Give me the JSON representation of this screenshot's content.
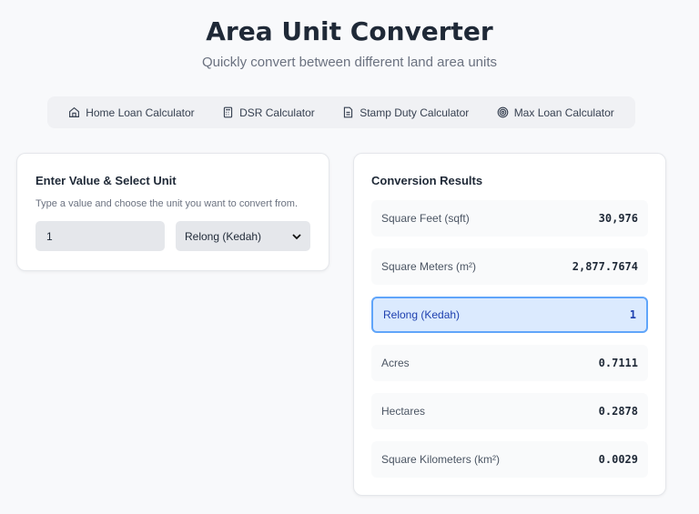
{
  "header": {
    "title": "Area Unit Converter",
    "subtitle": "Quickly convert between different land area units"
  },
  "nav": [
    {
      "label": "Home Loan Calculator",
      "icon": "home-icon"
    },
    {
      "label": "DSR Calculator",
      "icon": "calculator-icon"
    },
    {
      "label": "Stamp Duty Calculator",
      "icon": "document-icon"
    },
    {
      "label": "Max Loan Calculator",
      "icon": "target-icon"
    }
  ],
  "input": {
    "title": "Enter Value & Select Unit",
    "description": "Type a value and choose the unit you want to convert from.",
    "value": "1",
    "unit": "Relong (Kedah)"
  },
  "results": {
    "title": "Conversion Results",
    "items": [
      {
        "label": "Square Feet (sqft)",
        "value": "30,976"
      },
      {
        "label": "Square Meters (m²)",
        "value": "2,877.7674"
      },
      {
        "label": "Relong (Kedah)",
        "value": "1",
        "active": true
      },
      {
        "label": "Acres",
        "value": "0.7111"
      },
      {
        "label": "Hectares",
        "value": "0.2878"
      },
      {
        "label": "Square Kilometers (km²)",
        "value": "0.0029"
      }
    ]
  },
  "colors": {
    "accent": "#60a5fa",
    "active_bg": "#dbeafe"
  }
}
